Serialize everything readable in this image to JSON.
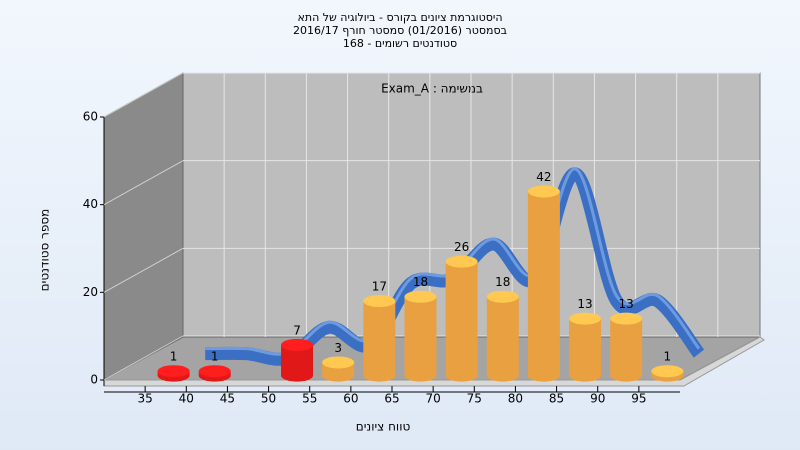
{
  "chart_data": {
    "type": "histogram3d",
    "title": [
      "היסטוגרמת ציונים בקורס - ביולוגיה של התא",
      "בסמסטר  (01/2016)  סמסטר חורף 2016/17",
      "סטודנטים רשומים - 168"
    ],
    "annotation": "Exam_A : במשימה",
    "x_label": "טווח ציונים",
    "y_label": "מספר סטודנטים",
    "bins": [
      35,
      40,
      45,
      50,
      55,
      60,
      65,
      70,
      75,
      80,
      85,
      90,
      95,
      100
    ],
    "values": [
      1,
      1,
      0,
      7,
      3,
      17,
      18,
      26,
      18,
      42,
      13,
      13,
      1
    ],
    "bar_colors": [
      "#e01818",
      "#e01818",
      "#e01818",
      "#e01818",
      "#e8a040",
      "#e8a040",
      "#e8a040",
      "#e8a040",
      "#e8a040",
      "#e8a040",
      "#e8a040",
      "#e8a040",
      "#e8a040"
    ],
    "line_color": "#3a6fc4",
    "xlim": [
      30,
      100
    ],
    "xticks": [
      35,
      40,
      45,
      50,
      55,
      60,
      65,
      70,
      75,
      80,
      85,
      90,
      95
    ],
    "ylim": [
      0,
      60
    ],
    "yticks": [
      0,
      20,
      40,
      60
    ],
    "grid": true
  }
}
